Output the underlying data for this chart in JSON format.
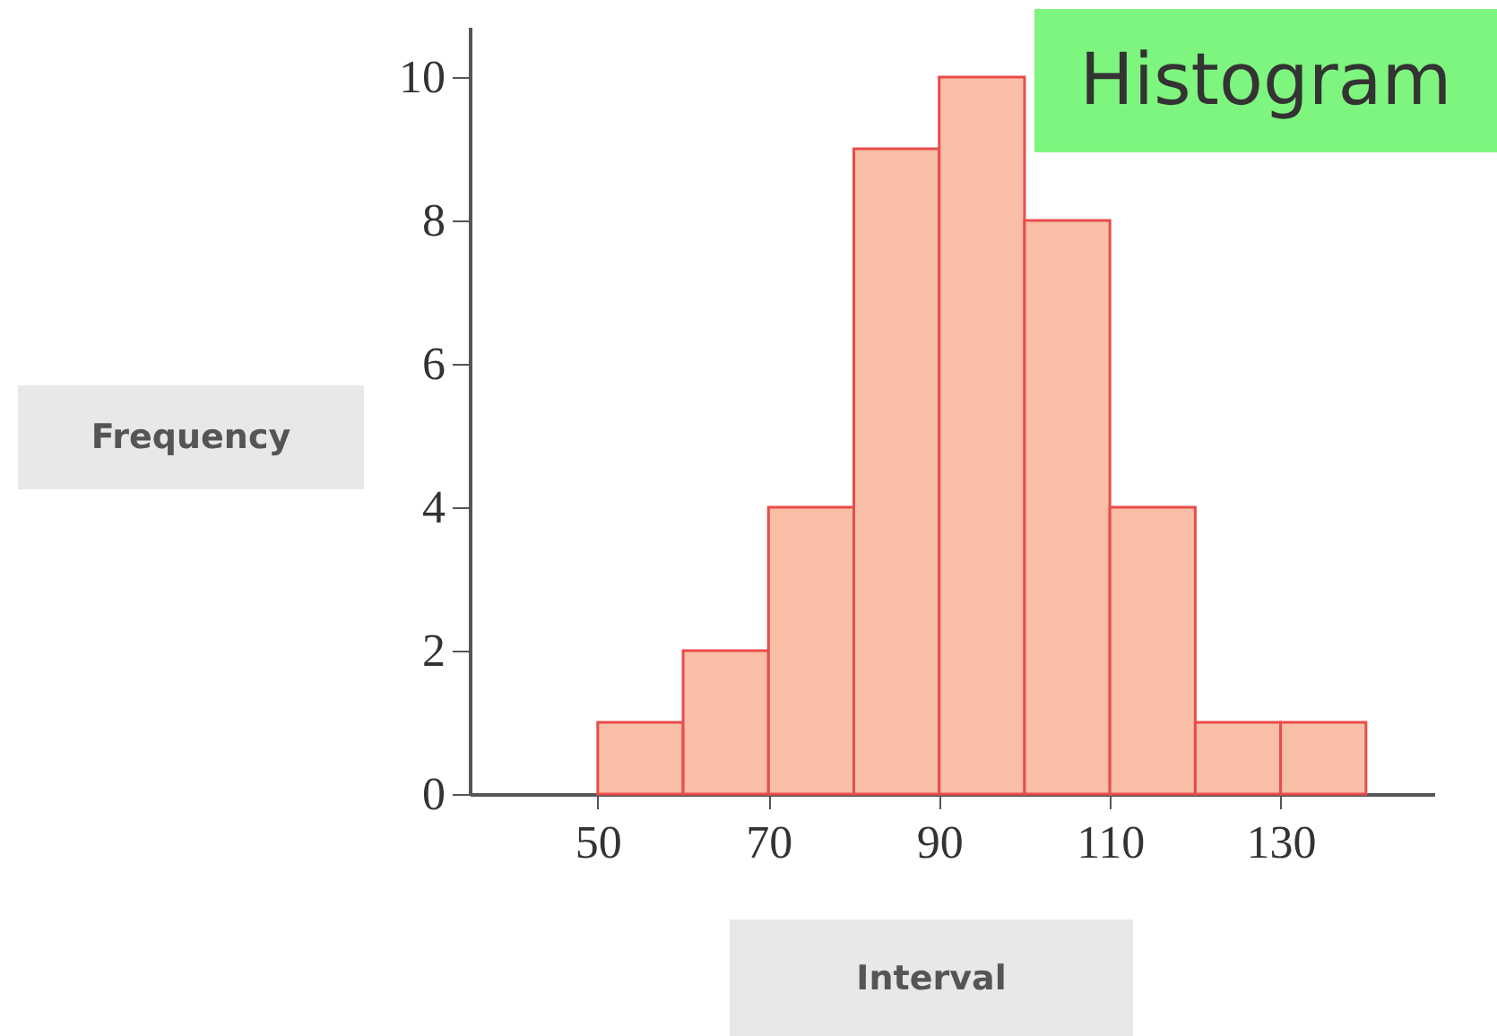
{
  "chart_data": {
    "type": "histogram",
    "title": "Histogram",
    "xlabel": "Interval",
    "ylabel": "Frequency",
    "bins": [
      50,
      60,
      70,
      80,
      90,
      100,
      110,
      120,
      130,
      140
    ],
    "values": [
      1,
      2,
      4,
      9,
      10,
      8,
      4,
      1,
      1
    ],
    "color": "#f9bfa6",
    "xlim": [
      35,
      148
    ],
    "xticks": [
      50,
      70,
      90,
      110,
      130
    ],
    "ylim": [
      0,
      10.7
    ],
    "yticks": [
      0,
      2,
      4,
      6,
      8,
      10
    ],
    "grid": false
  }
}
